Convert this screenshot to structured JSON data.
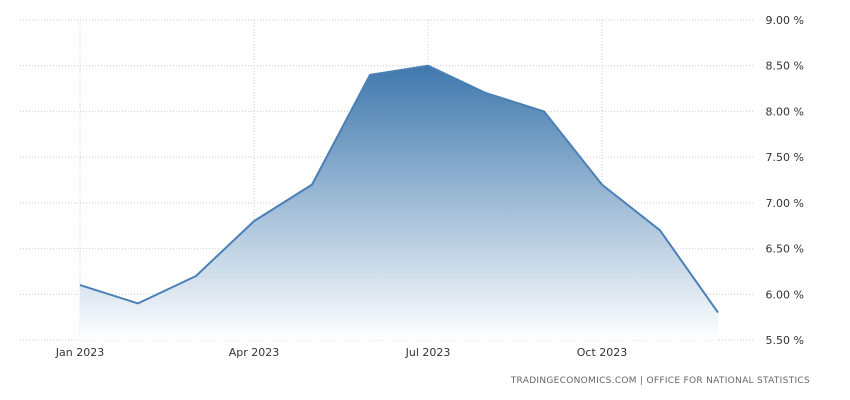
{
  "chart_data": {
    "type": "area",
    "x": [
      "2023-01",
      "2023-02",
      "2023-03",
      "2023-04",
      "2023-05",
      "2023-06",
      "2023-07",
      "2023-08",
      "2023-09",
      "2023-10",
      "2023-11",
      "2023-12"
    ],
    "values": [
      6.1,
      5.9,
      6.2,
      6.8,
      7.2,
      8.4,
      8.5,
      8.2,
      8.0,
      7.2,
      6.7,
      5.8
    ],
    "x_ticks": [
      {
        "x": "2023-01",
        "label": "Jan 2023"
      },
      {
        "x": "2023-04",
        "label": "Apr 2023"
      },
      {
        "x": "2023-07",
        "label": "Jul 2023"
      },
      {
        "x": "2023-10",
        "label": "Oct 2023"
      }
    ],
    "y_ticks": [
      {
        "v": 9.0,
        "label": "9.00 %"
      },
      {
        "v": 8.5,
        "label": "8.50 %"
      },
      {
        "v": 8.0,
        "label": "8.00 %"
      },
      {
        "v": 7.5,
        "label": "7.50 %"
      },
      {
        "v": 7.0,
        "label": "7.00 %"
      },
      {
        "v": 6.5,
        "label": "6.50 %"
      },
      {
        "v": 6.0,
        "label": "6.00 %"
      },
      {
        "v": 5.5,
        "label": "5.50 %"
      }
    ],
    "ylim": [
      5.5,
      9.0
    ],
    "y_axis_side": "right",
    "grid": true,
    "title": "",
    "xlabel": "",
    "ylabel": "",
    "colors": {
      "line": "#4a80b6",
      "fill_top": "#3f78ad",
      "fill_bottom": "#ffffff",
      "grid": "#cccccc",
      "text": "#333333"
    }
  },
  "source": "TRADINGECONOMICS.COM | OFFICE FOR NATIONAL STATISTICS"
}
